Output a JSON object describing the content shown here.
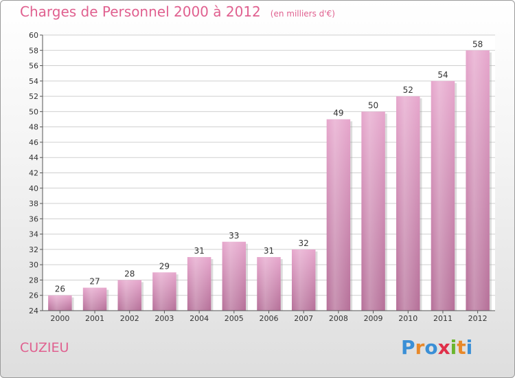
{
  "header": {
    "title": "Charges de Personnel 2000 à 2012",
    "subtitle": "(en milliers d'€)"
  },
  "footer": {
    "commune": "CUZIEU",
    "logo_letters": [
      "P",
      "r",
      "o",
      "x",
      "i",
      "t",
      "i"
    ],
    "logo_colors": [
      "#3a8fd6",
      "#e8892a",
      "#3a8fd6",
      "#e0304a",
      "#6bb52e",
      "#e8892a",
      "#3a8fd6"
    ]
  },
  "chart_data": {
    "type": "bar",
    "title": "Charges de Personnel 2000 à 2012",
    "subtitle": "(en milliers d'€)",
    "categories": [
      "2000",
      "2001",
      "2002",
      "2003",
      "2004",
      "2005",
      "2006",
      "2007",
      "2008",
      "2009",
      "2010",
      "2011",
      "2012"
    ],
    "values": [
      26,
      27,
      28,
      29,
      31,
      33,
      31,
      32,
      49,
      50,
      52,
      54,
      58
    ],
    "ylim": [
      24,
      60
    ],
    "yticks": [
      24,
      26,
      28,
      30,
      32,
      34,
      36,
      38,
      40,
      42,
      44,
      46,
      48,
      50,
      52,
      54,
      56,
      58,
      60
    ],
    "grid": true,
    "bar_color_top": "#e6a6cc",
    "bar_color_bottom": "#b56f98"
  }
}
